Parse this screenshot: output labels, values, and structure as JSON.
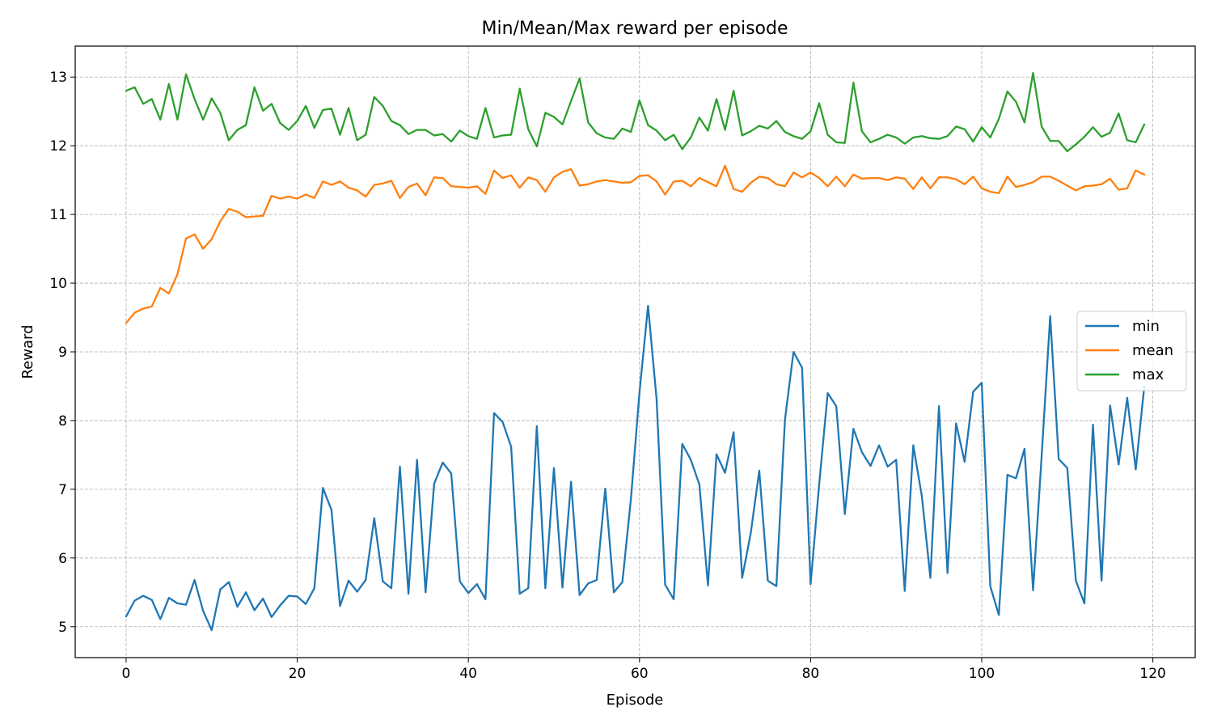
{
  "chart_data": {
    "type": "line",
    "title": "Min/Mean/Max reward per episode",
    "xlabel": "Episode",
    "ylabel": "Reward",
    "xlim": [
      -5.95,
      124.95
    ],
    "ylim": [
      4.55,
      13.45
    ],
    "xticks": [
      0,
      20,
      40,
      60,
      80,
      100,
      120
    ],
    "yticks": [
      5,
      6,
      7,
      8,
      9,
      10,
      11,
      12,
      13
    ],
    "grid": true,
    "legend_position": "center-right",
    "x": [
      0,
      1,
      2,
      3,
      4,
      5,
      6,
      7,
      8,
      9,
      10,
      11,
      12,
      13,
      14,
      15,
      16,
      17,
      18,
      19,
      20,
      21,
      22,
      23,
      24,
      25,
      26,
      27,
      28,
      29,
      30,
      31,
      32,
      33,
      34,
      35,
      36,
      37,
      38,
      39,
      40,
      41,
      42,
      43,
      44,
      45,
      46,
      47,
      48,
      49,
      50,
      51,
      52,
      53,
      54,
      55,
      56,
      57,
      58,
      59,
      60,
      61,
      62,
      63,
      64,
      65,
      66,
      67,
      68,
      69,
      70,
      71,
      72,
      73,
      74,
      75,
      76,
      77,
      78,
      79,
      80,
      81,
      82,
      83,
      84,
      85,
      86,
      87,
      88,
      89,
      90,
      91,
      92,
      93,
      94,
      95,
      96,
      97,
      98,
      99,
      100,
      101,
      102,
      103,
      104,
      105,
      106,
      107,
      108,
      109,
      110,
      111,
      112,
      113,
      114,
      115,
      116,
      117,
      118,
      119
    ],
    "series": [
      {
        "name": "min",
        "color": "#1f77b4",
        "values": [
          5.15,
          5.38,
          5.45,
          5.39,
          5.11,
          5.42,
          5.34,
          5.32,
          5.68,
          5.23,
          4.95,
          5.54,
          5.65,
          5.29,
          5.5,
          5.24,
          5.41,
          5.14,
          5.31,
          5.45,
          5.44,
          5.33,
          5.56,
          7.02,
          6.7,
          5.3,
          5.67,
          5.51,
          5.68,
          6.58,
          5.66,
          5.56,
          7.33,
          5.48,
          7.43,
          5.5,
          7.08,
          7.39,
          7.23,
          5.66,
          5.49,
          5.62,
          5.4,
          8.11,
          7.98,
          7.62,
          5.48,
          5.56,
          7.92,
          5.56,
          7.31,
          5.57,
          7.11,
          5.46,
          5.63,
          5.68,
          7.01,
          5.5,
          5.65,
          6.86,
          8.41,
          9.67,
          8.31,
          5.61,
          5.4,
          7.66,
          7.43,
          7.07,
          5.6,
          7.51,
          7.24,
          7.83,
          5.71,
          6.36,
          7.27,
          5.67,
          5.59,
          8.01,
          9.0,
          8.77,
          5.62,
          7.07,
          8.4,
          8.21,
          6.64,
          7.88,
          7.54,
          7.34,
          7.64,
          7.33,
          7.43,
          5.52,
          7.64,
          6.9,
          5.71,
          8.21,
          5.78,
          7.96,
          7.4,
          8.42,
          8.55,
          5.59,
          5.17,
          7.21,
          7.16,
          7.59,
          5.53,
          7.48,
          9.52,
          7.44,
          7.31,
          5.67,
          5.34,
          7.94,
          5.67,
          8.22,
          7.36,
          8.33,
          7.29,
          8.5
        ]
      },
      {
        "name": "mean",
        "color": "#ff7f0e",
        "values": [
          9.42,
          9.57,
          9.63,
          9.66,
          9.93,
          9.85,
          10.13,
          10.65,
          10.71,
          10.5,
          10.64,
          10.9,
          11.08,
          11.04,
          10.96,
          10.97,
          10.98,
          11.27,
          11.23,
          11.26,
          11.23,
          11.29,
          11.24,
          11.48,
          11.43,
          11.48,
          11.39,
          11.35,
          11.26,
          11.43,
          11.45,
          11.49,
          11.24,
          11.4,
          11.45,
          11.28,
          11.54,
          11.53,
          11.41,
          11.4,
          11.39,
          11.41,
          11.3,
          11.64,
          11.53,
          11.57,
          11.39,
          11.54,
          11.5,
          11.33,
          11.54,
          11.62,
          11.66,
          11.42,
          11.44,
          11.48,
          11.5,
          11.48,
          11.46,
          11.47,
          11.56,
          11.57,
          11.48,
          11.29,
          11.48,
          11.49,
          11.41,
          11.53,
          11.47,
          11.41,
          11.71,
          11.37,
          11.33,
          11.46,
          11.55,
          11.53,
          11.44,
          11.41,
          11.61,
          11.54,
          11.61,
          11.53,
          11.41,
          11.55,
          11.41,
          11.58,
          11.52,
          11.53,
          11.53,
          11.5,
          11.54,
          11.52,
          11.37,
          11.54,
          11.38,
          11.54,
          11.54,
          11.51,
          11.44,
          11.55,
          11.38,
          11.33,
          11.31,
          11.55,
          11.4,
          11.43,
          11.47,
          11.55,
          11.55,
          11.49,
          11.42,
          11.35,
          11.41,
          11.42,
          11.44,
          11.52,
          11.36,
          11.38,
          11.64,
          11.58
        ]
      },
      {
        "name": "max",
        "color": "#2ca02c",
        "values": [
          12.8,
          12.85,
          12.61,
          12.68,
          12.38,
          12.9,
          12.38,
          13.04,
          12.68,
          12.38,
          12.69,
          12.48,
          12.08,
          12.23,
          12.3,
          12.85,
          12.51,
          12.61,
          12.33,
          12.23,
          12.36,
          12.58,
          12.26,
          12.52,
          12.54,
          12.16,
          12.55,
          12.08,
          12.16,
          12.71,
          12.58,
          12.36,
          12.3,
          12.17,
          12.23,
          12.23,
          12.15,
          12.17,
          12.06,
          12.22,
          12.14,
          12.1,
          12.55,
          12.12,
          12.15,
          12.16,
          12.83,
          12.24,
          11.99,
          12.48,
          12.42,
          12.31,
          12.65,
          12.98,
          12.34,
          12.18,
          12.12,
          12.1,
          12.25,
          12.2,
          12.66,
          12.3,
          12.22,
          12.08,
          12.16,
          11.95,
          12.12,
          12.41,
          12.22,
          12.68,
          12.23,
          12.8,
          12.15,
          12.21,
          12.29,
          12.25,
          12.36,
          12.2,
          12.14,
          12.1,
          12.21,
          12.62,
          12.16,
          12.05,
          12.04,
          12.92,
          12.21,
          12.05,
          12.1,
          12.16,
          12.12,
          12.03,
          12.12,
          12.14,
          12.11,
          12.1,
          12.14,
          12.28,
          12.24,
          12.06,
          12.27,
          12.12,
          12.39,
          12.79,
          12.64,
          12.34,
          13.06,
          12.28,
          12.07,
          12.07,
          11.92,
          12.02,
          12.13,
          12.27,
          12.13,
          12.19,
          12.47,
          12.08,
          12.05,
          12.31
        ]
      }
    ]
  }
}
